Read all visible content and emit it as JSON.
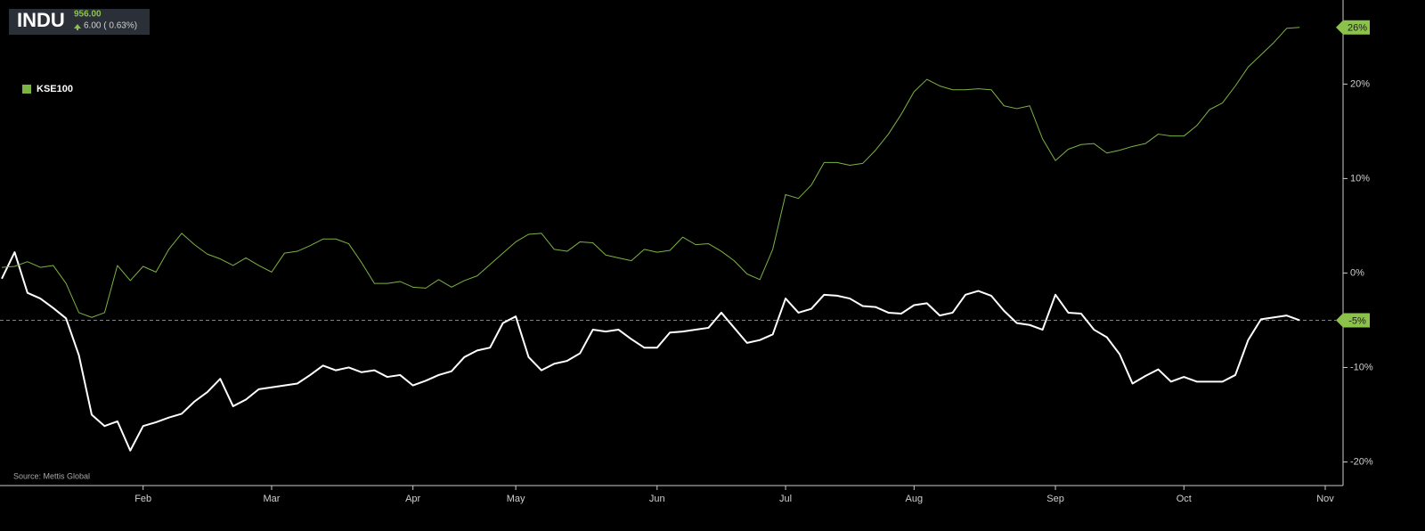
{
  "quote": {
    "price": "956.00",
    "change": "6.00 ( 0.63%)"
  },
  "source": "Source: Mettis Global",
  "chart_data": {
    "type": "line",
    "categories": [
      null,
      null,
      null,
      null,
      null,
      null,
      null,
      null,
      null,
      null,
      null,
      "Feb",
      null,
      null,
      null,
      null,
      null,
      null,
      null,
      null,
      null,
      "Mar",
      null,
      null,
      null,
      null,
      null,
      null,
      null,
      null,
      null,
      null,
      "Apr",
      null,
      null,
      null,
      null,
      null,
      null,
      null,
      "May",
      null,
      null,
      null,
      null,
      null,
      null,
      null,
      null,
      null,
      null,
      "Jun",
      null,
      null,
      null,
      null,
      null,
      null,
      null,
      null,
      null,
      "Jul",
      null,
      null,
      null,
      null,
      null,
      null,
      null,
      null,
      null,
      "Aug",
      null,
      null,
      null,
      null,
      null,
      null,
      null,
      null,
      null,
      null,
      "Sep",
      null,
      null,
      null,
      null,
      null,
      null,
      null,
      null,
      null,
      "Oct",
      null,
      null,
      null,
      null,
      null,
      null,
      null,
      null,
      null,
      null,
      "Nov"
    ],
    "series": [
      {
        "name": "INDU",
        "color": "#ffffff",
        "width": 2,
        "legend": false,
        "last_line": true,
        "values": [
          -0.6,
          2.2,
          -2.1,
          -2.7,
          -3.7,
          -4.8,
          -8.7,
          -15.0,
          -16.2,
          -15.7,
          -18.8,
          -16.2,
          -15.8,
          -15.3,
          -14.9,
          -13.6,
          -12.6,
          -11.2,
          -14.1,
          -13.4,
          -12.3,
          -12.1,
          -11.9,
          -11.7,
          -10.8,
          -9.8,
          -10.3,
          -10.0,
          -10.5,
          -10.3,
          -11.0,
          -10.8,
          -11.9,
          -11.4,
          -10.8,
          -10.4,
          -8.9,
          -8.2,
          -7.9,
          -5.3,
          -4.6,
          -8.9,
          -10.3,
          -9.6,
          -9.3,
          -8.5,
          -6.0,
          -6.2,
          -6.0,
          -7.0,
          -7.9,
          -7.9,
          -6.3,
          -6.2,
          -6.0,
          -5.8,
          -4.2,
          -5.8,
          -7.4,
          -7.1,
          -6.5,
          -2.7,
          -4.2,
          -3.8,
          -2.3,
          -2.4,
          -2.7,
          -3.5,
          -3.6,
          -4.2,
          -4.3,
          -3.4,
          -3.2,
          -4.5,
          -4.2,
          -2.3,
          -1.9,
          -2.4,
          -4.0,
          -5.3,
          -5.5,
          -6.0,
          -2.3,
          -4.2,
          -4.3,
          -6.0,
          -6.8,
          -8.6,
          -11.7,
          -10.9,
          -10.2,
          -11.5,
          -11.0,
          -11.5,
          -11.5,
          -11.5,
          -10.8,
          -7.1,
          -4.9,
          -4.7,
          -4.5,
          -5,
          null,
          null
        ],
        "value_labels": [
          null,
          null,
          null,
          null,
          null,
          null,
          null,
          null,
          null,
          null,
          null,
          null,
          null,
          null,
          null,
          null,
          null,
          null,
          null,
          null,
          null,
          null,
          null,
          null,
          null,
          null,
          null,
          null,
          null,
          null,
          null,
          null,
          null,
          null,
          null,
          null,
          null,
          null,
          null,
          null,
          null,
          null,
          null,
          null,
          null,
          null,
          null,
          null,
          null,
          null,
          null,
          null,
          null,
          null,
          null,
          null,
          null,
          null,
          null,
          null,
          null,
          null,
          null,
          null,
          null,
          null,
          null,
          null,
          null,
          null,
          null,
          null,
          null,
          null,
          null,
          null,
          null,
          null,
          null,
          null,
          null,
          null,
          null,
          null,
          null,
          null,
          null,
          null,
          null,
          null,
          null,
          null,
          null,
          null,
          null,
          null,
          null,
          null,
          null,
          null,
          null,
          "-5%",
          null,
          null
        ]
      },
      {
        "name": "KSE100",
        "color": "#7cb342",
        "width": 1,
        "legend": true,
        "last_line": false,
        "values": [
          0.6,
          0.7,
          1.2,
          0.6,
          0.8,
          -1.1,
          -4.2,
          -4.7,
          -4.2,
          0.8,
          -0.8,
          0.7,
          0.1,
          2.5,
          4.2,
          3.0,
          2.0,
          1.5,
          0.8,
          1.6,
          0.8,
          0.1,
          2.1,
          2.3,
          2.9,
          3.6,
          3.6,
          3.1,
          1.1,
          -1.1,
          -1.1,
          -0.9,
          -1.5,
          -1.6,
          -0.7,
          -1.5,
          -0.8,
          -0.3,
          0.9,
          2.1,
          3.3,
          4.1,
          4.2,
          2.5,
          2.3,
          3.3,
          3.2,
          1.9,
          1.6,
          1.3,
          2.5,
          2.2,
          2.4,
          3.8,
          3.0,
          3.1,
          2.3,
          1.3,
          -0.1,
          -0.7,
          2.5,
          8.3,
          7.9,
          9.3,
          11.7,
          11.7,
          11.4,
          11.6,
          13.0,
          14.7,
          16.8,
          19.2,
          20.5,
          19.8,
          19.4,
          19.4,
          19.5,
          19.4,
          17.7,
          17.4,
          17.7,
          14.2,
          11.9,
          13.1,
          13.6,
          13.7,
          12.7,
          13.0,
          13.4,
          13.7,
          14.7,
          14.5,
          14.5,
          15.6,
          17.3,
          18.0,
          19.8,
          21.8,
          23.1,
          24.4,
          25.9,
          26,
          null,
          null
        ],
        "value_labels": [
          null,
          null,
          null,
          null,
          null,
          null,
          null,
          null,
          null,
          null,
          null,
          null,
          null,
          null,
          null,
          null,
          null,
          null,
          null,
          null,
          null,
          null,
          null,
          null,
          null,
          null,
          null,
          null,
          null,
          null,
          null,
          null,
          null,
          null,
          null,
          null,
          null,
          null,
          null,
          null,
          null,
          null,
          null,
          null,
          null,
          null,
          null,
          null,
          null,
          null,
          null,
          null,
          null,
          null,
          null,
          null,
          null,
          null,
          null,
          null,
          null,
          null,
          null,
          null,
          null,
          null,
          null,
          null,
          null,
          null,
          null,
          null,
          null,
          null,
          null,
          null,
          null,
          null,
          null,
          null,
          null,
          null,
          null,
          null,
          null,
          null,
          null,
          null,
          null,
          null,
          null,
          null,
          null,
          null,
          null,
          null,
          null,
          null,
          null,
          null,
          null,
          "26%",
          null,
          null
        ]
      }
    ],
    "badge_color": "#8bc34a",
    "ylim": [
      -22.5,
      28.9
    ],
    "yticks": [
      {
        "value": 20,
        "label": "20%"
      },
      {
        "value": 10,
        "label": "10%"
      },
      {
        "value": 0,
        "label": "0%"
      },
      {
        "value": -10,
        "label": "-10%"
      },
      {
        "value": -20,
        "label": "-20%"
      }
    ],
    "legend_position": "upper left"
  }
}
